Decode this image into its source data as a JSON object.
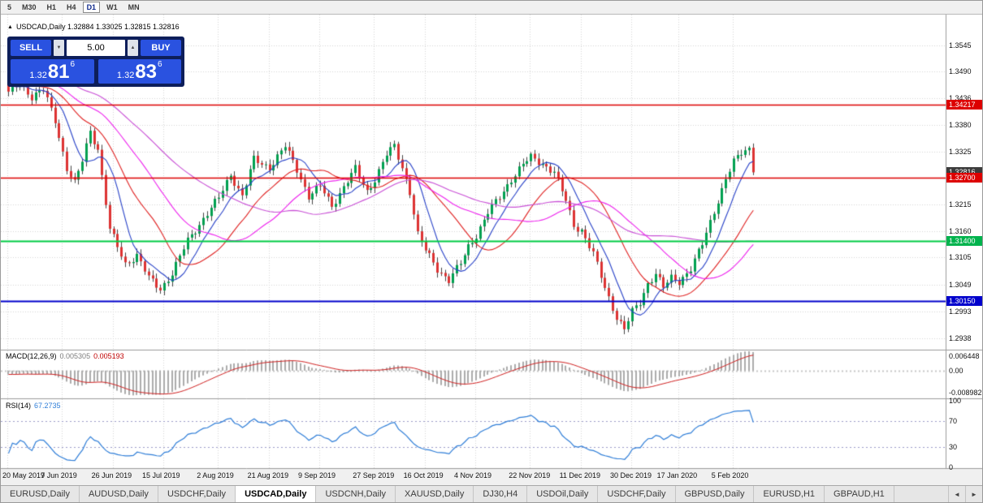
{
  "toolbar": {
    "timeframes": [
      "5",
      "M30",
      "H1",
      "H4",
      "D1",
      "W1",
      "MN"
    ],
    "active": "D1"
  },
  "chart": {
    "title_text": "USDCAD,Daily 1.32884 1.33025 1.32815 1.32816"
  },
  "icons": {
    "volume_down": "▼",
    "volume_up": "▲",
    "collapse": "▲",
    "scroll_left": "◄",
    "scroll_right": "►"
  },
  "one_click": {
    "sell_label": "SELL",
    "buy_label": "BUY",
    "volume": "5.00",
    "sell": {
      "prefix": "1.32",
      "big": "81",
      "sup": "6"
    },
    "buy": {
      "prefix": "1.32",
      "big": "83",
      "sup": "6"
    }
  },
  "price_axis": {
    "labels": [
      "1.3545",
      "1.3490",
      "1.3436",
      "1.3380",
      "1.3325",
      "1.3270",
      "1.3215",
      "1.3160",
      "1.3105",
      "1.3049",
      "1.2993",
      "1.2938"
    ],
    "badges": [
      {
        "text": "1.34217",
        "color": "#dd0000"
      },
      {
        "text": "1.32816",
        "color": "#3c3c3c"
      },
      {
        "text": "1.32700",
        "color": "#dd0000"
      },
      {
        "text": "1.31400",
        "color": "#00b34d"
      },
      {
        "text": "1.30150",
        "color": "#0000cc"
      }
    ]
  },
  "hlines": [
    {
      "price": 1.34217,
      "color": "#dd0000",
      "w": 1.4
    },
    {
      "price": 1.327,
      "color": "#dd0000",
      "w": 1.4
    },
    {
      "price": 1.314,
      "color": "#00cc44",
      "w": 2
    },
    {
      "price": 1.3015,
      "color": "#0000cc",
      "w": 2
    }
  ],
  "macd": {
    "name": "MACD(12,26,9)",
    "value1": "0.005305",
    "value2": "0.005193",
    "axis_labels": [
      "0.006448",
      "0.00",
      "-0.008982"
    ],
    "max": 0.006448,
    "min": -0.008982
  },
  "rsi": {
    "name": "RSI(14)",
    "value": "67.2735",
    "axis_labels": [
      "100",
      "70",
      "30",
      "0"
    ],
    "levels": [
      70,
      30
    ]
  },
  "date_axis": [
    [
      "20 May 2019",
      0
    ],
    [
      "7 Jun 2019",
      14
    ],
    [
      "26 Jun 2019",
      27
    ],
    [
      "15 Jul 2019",
      40
    ],
    [
      "2 Aug 2019",
      54
    ],
    [
      "21 Aug 2019",
      67
    ],
    [
      "9 Sep 2019",
      80
    ],
    [
      "27 Sep 2019",
      94
    ],
    [
      "16 Oct 2019",
      107
    ],
    [
      "4 Nov 2019",
      120
    ],
    [
      "22 Nov 2019",
      134
    ],
    [
      "11 Dec 2019",
      147
    ],
    [
      "30 Dec 2019",
      160
    ],
    [
      "17 Jan 2020",
      172
    ],
    [
      "5 Feb 2020",
      186
    ]
  ],
  "tabs": {
    "items": [
      "EURUSD,Daily",
      "AUDUSD,Daily",
      "USDCHF,Daily",
      "USDCAD,Daily",
      "USDCNH,Daily",
      "XAUUSD,Daily",
      "DJ30,H4",
      "USDOil,Daily",
      "USDCHF,Daily",
      "GBPUSD,Daily",
      "EURUSD,H1",
      "GBPAUD,H1"
    ],
    "active": "USDCAD,Daily"
  },
  "chart_data": {
    "type": "candlestick",
    "symbol": "USDCAD",
    "timeframe": "Daily",
    "title": "USDCAD,Daily",
    "ohlc_last": {
      "open": 1.32884,
      "high": 1.33025,
      "low": 1.32815,
      "close": 1.32816
    },
    "bars": 192,
    "price_top": 1.359,
    "price_bottom": 1.2914,
    "last_close": 1.32816,
    "close_waypoints": [
      [
        0,
        1.3445
      ],
      [
        3,
        1.3468
      ],
      [
        6,
        1.3438
      ],
      [
        9,
        1.3452
      ],
      [
        12,
        1.339
      ],
      [
        15,
        1.329
      ],
      [
        17,
        1.3258
      ],
      [
        19,
        1.3305
      ],
      [
        21,
        1.3368
      ],
      [
        23,
        1.333
      ],
      [
        26,
        1.3162
      ],
      [
        30,
        1.3092
      ],
      [
        33,
        1.311
      ],
      [
        36,
        1.3062
      ],
      [
        39,
        1.304
      ],
      [
        42,
        1.3072
      ],
      [
        46,
        1.314
      ],
      [
        50,
        1.3186
      ],
      [
        54,
        1.3228
      ],
      [
        57,
        1.3278
      ],
      [
        60,
        1.3232
      ],
      [
        63,
        1.3308
      ],
      [
        67,
        1.3292
      ],
      [
        71,
        1.3335
      ],
      [
        74,
        1.3288
      ],
      [
        77,
        1.3232
      ],
      [
        80,
        1.3252
      ],
      [
        83,
        1.3212
      ],
      [
        86,
        1.3252
      ],
      [
        89,
        1.3288
      ],
      [
        92,
        1.3242
      ],
      [
        94,
        1.3268
      ],
      [
        97,
        1.3318
      ],
      [
        99,
        1.3335
      ],
      [
        101,
        1.3292
      ],
      [
        103,
        1.3242
      ],
      [
        105,
        1.3152
      ],
      [
        107,
        1.312
      ],
      [
        110,
        1.3082
      ],
      [
        113,
        1.3058
      ],
      [
        116,
        1.3092
      ],
      [
        118,
        1.3128
      ],
      [
        120,
        1.3152
      ],
      [
        123,
        1.3198
      ],
      [
        126,
        1.323
      ],
      [
        129,
        1.3268
      ],
      [
        132,
        1.3298
      ],
      [
        134,
        1.3312
      ],
      [
        137,
        1.33
      ],
      [
        140,
        1.3282
      ],
      [
        143,
        1.3222
      ],
      [
        145,
        1.3172
      ],
      [
        147,
        1.3162
      ],
      [
        150,
        1.3112
      ],
      [
        153,
        1.3042
      ],
      [
        156,
        1.2982
      ],
      [
        158,
        1.2956
      ],
      [
        160,
        1.2992
      ],
      [
        162,
        1.3012
      ],
      [
        164,
        1.3052
      ],
      [
        166,
        1.3072
      ],
      [
        168,
        1.3042
      ],
      [
        170,
        1.3062
      ],
      [
        172,
        1.3056
      ],
      [
        175,
        1.3082
      ],
      [
        178,
        1.3132
      ],
      [
        181,
        1.3202
      ],
      [
        184,
        1.3268
      ],
      [
        186,
        1.3302
      ],
      [
        188,
        1.3322
      ],
      [
        190,
        1.3332
      ],
      [
        191,
        1.32816
      ]
    ],
    "ma_periods": [
      8,
      20,
      34,
      55
    ],
    "macd_params": [
      12,
      26,
      9
    ],
    "macd_last": [
      0.005305,
      0.005193
    ],
    "rsi_period": 14,
    "rsi_last": 67.2735,
    "hline_prices": [
      1.34217,
      1.327,
      1.314,
      1.3015
    ]
  },
  "colors": {
    "bull": "#00a050",
    "bear": "#dd3333",
    "wick": "#444444",
    "ma_fast": "#2741c8",
    "ma_mid": "#e02020",
    "ma_slow": "#ee22ee",
    "ma_slow2": "#c94fd6",
    "macd_hist": "#ababab",
    "macd_signal": "#d02020",
    "rsi_line": "#2f7ed8",
    "grid": "#d6d6d6",
    "pane_border": "#9b9b9b"
  }
}
